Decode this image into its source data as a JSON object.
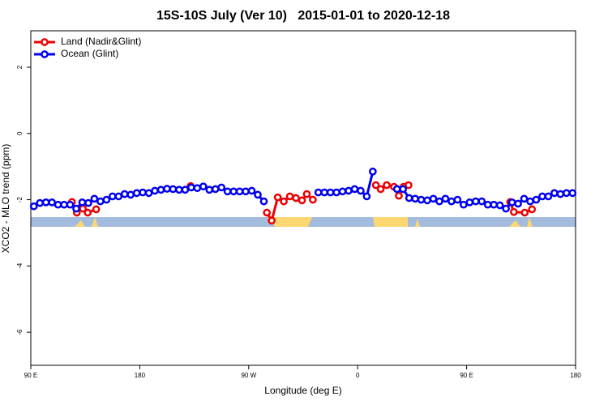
{
  "chart_data": {
    "type": "line",
    "title": "15S-10S July (Ver 10)   2015-01-01 to 2020-12-18",
    "xlabel": "Longitude (deg E)",
    "ylabel": "XCO2 - MLO trend (ppm)",
    "xlim": [
      90,
      540
    ],
    "xticks": [
      {
        "value": 90,
        "label": "90 E"
      },
      180,
      {
        "value": 270,
        "label": "90 W"
      },
      {
        "value": 360,
        "label": "0"
      },
      {
        "value": 450,
        "label": "90 E"
      },
      {
        "value": 540,
        "label": "180"
      }
    ],
    "ylim": [
      -7,
      3.1
    ],
    "yticks": [
      2,
      0,
      -2,
      -4,
      -6
    ],
    "legend": "upper left",
    "series": [
      {
        "name": "Land (Nadir&Glint)",
        "color": "#ee0000",
        "x": [
          124,
          128,
          133,
          137,
          144,
          null,
          222,
          null,
          285,
          289,
          294,
          299,
          304,
          309,
          314,
          318,
          323,
          null,
          375,
          379,
          384,
          390,
          394,
          398,
          402,
          null,
          486,
          489,
          498,
          504
        ],
        "values": [
          -2.07,
          -2.39,
          -2.27,
          -2.39,
          -2.29,
          null,
          -1.59,
          null,
          -2.39,
          -2.63,
          -1.93,
          -2.05,
          -1.9,
          -1.95,
          -2.02,
          -1.83,
          -2.0,
          null,
          -1.56,
          -1.68,
          -1.56,
          -1.61,
          -1.88,
          -1.61,
          -1.56,
          null,
          -2.07,
          -2.37,
          -2.39,
          -2.29
        ]
      },
      {
        "name": "Ocean (Glint)",
        "color": "#0000ee",
        "x": [
          92.5,
          97.5,
          102.5,
          107.5,
          112.5,
          117.5,
          122.5,
          127.5,
          132.5,
          137.5,
          142.5,
          147.5,
          152.5,
          157.5,
          162.5,
          167.5,
          172.5,
          177.5,
          182.5,
          187.5,
          192.5,
          197.5,
          202.5,
          207.5,
          212.5,
          217.5,
          222.5,
          227.5,
          232.5,
          237.5,
          242.5,
          247.5,
          252.5,
          257.5,
          262.5,
          267.5,
          272.5,
          277.5,
          282.5,
          287.5,
          292.5,
          297.5,
          302.5,
          307.5,
          312.5,
          317.5,
          322.5,
          327.5,
          332.5,
          337.5,
          342.5,
          347.5,
          352.5,
          357.5,
          362.5,
          367.5,
          372.5,
          377.5,
          382.5,
          387.5,
          392.5,
          397.5,
          402.5,
          407.5,
          412.5,
          417.5,
          422.5,
          427.5,
          432.5,
          437.5,
          442.5,
          447.5,
          452.5,
          457.5,
          462.5,
          467.5,
          472.5,
          477.5,
          482.5,
          487.5,
          492.5,
          497.5,
          502.5,
          507.5,
          512.5,
          517.5,
          522.5,
          527.5,
          532.5,
          537.5
        ],
        "values": [
          -2.2,
          -2.1,
          -2.08,
          -2.08,
          -2.15,
          -2.15,
          -2.15,
          -2.27,
          -2.08,
          -2.1,
          -1.97,
          -2.05,
          -2.0,
          -1.9,
          -1.9,
          -1.83,
          -1.85,
          -1.8,
          -1.78,
          -1.8,
          -1.73,
          -1.7,
          -1.67,
          -1.68,
          -1.7,
          -1.7,
          -1.63,
          -1.65,
          -1.6,
          -1.7,
          -1.68,
          -1.63,
          -1.75,
          -1.75,
          -1.75,
          -1.75,
          -1.73,
          -1.85,
          -2.05,
          null,
          null,
          null,
          null,
          null,
          null,
          null,
          null,
          -1.78,
          -1.78,
          -1.78,
          -1.78,
          -1.75,
          -1.73,
          -1.68,
          -1.73,
          -1.9,
          -1.15,
          null,
          null,
          null,
          -1.68,
          -1.68,
          -1.95,
          -1.97,
          -2.0,
          -2.02,
          -1.97,
          -2.05,
          -1.97,
          -2.05,
          -2.0,
          -2.15,
          -2.08,
          -2.05,
          -2.05,
          -2.15,
          -2.15,
          -2.17,
          -2.27,
          -2.08,
          -2.12,
          -1.97,
          -2.05,
          -2.0,
          -1.9,
          -1.9,
          -1.8,
          -1.83,
          -1.8,
          -1.8
        ]
      }
    ]
  }
}
